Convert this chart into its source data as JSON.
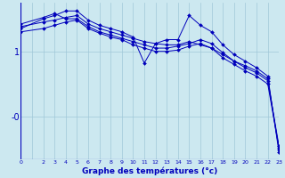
{
  "xlabel": "Graphe des températures (°c)",
  "background_color": "#cce8f0",
  "grid_color": "#a0c8d8",
  "line_color": "#0000bb",
  "xlim": [
    0,
    23
  ],
  "ylim": [
    -0.65,
    1.75
  ],
  "yticks": [
    1.0,
    0.0
  ],
  "ytick_labels": [
    "1",
    "-0"
  ],
  "series": [
    {
      "x": [
        0,
        2,
        3,
        4,
        5,
        6,
        7,
        8,
        9,
        10,
        11,
        12,
        13,
        14,
        15,
        16,
        17,
        18,
        19,
        20,
        21,
        22,
        23
      ],
      "y": [
        1.38,
        1.45,
        1.48,
        1.52,
        1.55,
        1.42,
        1.35,
        1.3,
        1.25,
        1.2,
        1.15,
        1.12,
        1.1,
        1.1,
        1.15,
        1.1,
        1.05,
        0.95,
        0.85,
        0.78,
        0.7,
        0.58,
        -0.5
      ]
    },
    {
      "x": [
        0,
        2,
        3,
        4,
        5,
        6,
        7,
        8,
        9,
        10,
        11,
        12,
        13,
        14,
        15,
        16,
        17,
        18,
        19,
        20,
        21,
        22,
        23
      ],
      "y": [
        1.35,
        1.5,
        1.55,
        1.62,
        1.62,
        1.48,
        1.4,
        1.35,
        1.3,
        1.22,
        0.82,
        1.12,
        1.18,
        1.18,
        1.55,
        1.4,
        1.3,
        1.1,
        0.95,
        0.85,
        0.75,
        0.62,
        -0.55
      ]
    },
    {
      "x": [
        0,
        2,
        3,
        4,
        5,
        6,
        7,
        8,
        9,
        10,
        11,
        12,
        13,
        14,
        15,
        16,
        17,
        18,
        19,
        20,
        21,
        22,
        23
      ],
      "y": [
        1.42,
        1.52,
        1.58,
        1.5,
        1.5,
        1.38,
        1.3,
        1.25,
        1.2,
        1.15,
        1.1,
        1.05,
        1.05,
        1.08,
        1.12,
        1.18,
        1.12,
        0.98,
        0.85,
        0.75,
        0.67,
        0.55,
        -0.45
      ]
    },
    {
      "x": [
        0,
        2,
        3,
        4,
        5,
        6,
        7,
        8,
        9,
        10,
        11,
        12,
        13,
        14,
        15,
        16,
        17,
        18,
        19,
        20,
        21,
        22,
        23
      ],
      "y": [
        1.3,
        1.35,
        1.4,
        1.45,
        1.48,
        1.35,
        1.28,
        1.22,
        1.18,
        1.1,
        1.05,
        1.0,
        1.0,
        1.02,
        1.08,
        1.12,
        1.05,
        0.9,
        0.8,
        0.7,
        0.62,
        0.5,
        -0.48
      ]
    }
  ]
}
